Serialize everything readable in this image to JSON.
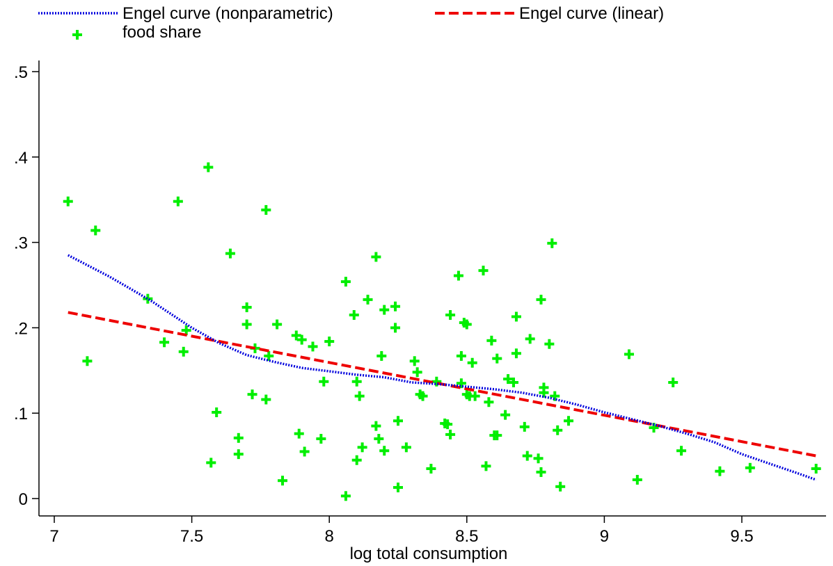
{
  "chart_data": {
    "type": "scatter",
    "xlabel": "log total consumption",
    "ylabel": "",
    "xlim": [
      6.93,
      9.8
    ],
    "ylim": [
      -0.02,
      0.52
    ],
    "x_ticks": [
      7,
      7.5,
      8,
      8.5,
      9,
      9.5
    ],
    "x_tick_labels": [
      "7",
      "7.5",
      "8",
      "8.5",
      "9",
      "9.5"
    ],
    "y_ticks": [
      0,
      0.1,
      0.2,
      0.3,
      0.4,
      0.5
    ],
    "y_tick_labels": [
      "0",
      ".1",
      ".2",
      ".3",
      ".4",
      ".5"
    ],
    "grid": false,
    "legend_position": "top",
    "series": [
      {
        "name": "Engel curve (nonparametric)",
        "kind": "line",
        "style": "dotted",
        "color": "#0000dd",
        "x": [
          7.05,
          7.2,
          7.35,
          7.5,
          7.6,
          7.7,
          7.8,
          7.9,
          8.0,
          8.1,
          8.2,
          8.3,
          8.4,
          8.5,
          8.6,
          8.7,
          8.8,
          8.9,
          9.0,
          9.1,
          9.2,
          9.3,
          9.4,
          9.5,
          9.6,
          9.7,
          9.77
        ],
        "y": [
          0.285,
          0.26,
          0.232,
          0.2,
          0.182,
          0.168,
          0.16,
          0.153,
          0.149,
          0.145,
          0.142,
          0.136,
          0.134,
          0.131,
          0.128,
          0.124,
          0.118,
          0.11,
          0.101,
          0.093,
          0.085,
          0.076,
          0.066,
          0.052,
          0.041,
          0.03,
          0.022
        ]
      },
      {
        "name": "Engel curve (linear)",
        "kind": "line",
        "style": "dashed",
        "color": "#ee0000",
        "x": [
          7.05,
          9.77
        ],
        "y": [
          0.218,
          0.05
        ]
      },
      {
        "name": "food share",
        "kind": "scatter",
        "marker": "plus",
        "color": "#00ee00",
        "x": [
          7.05,
          7.12,
          7.15,
          7.34,
          7.4,
          7.45,
          7.47,
          7.48,
          7.56,
          7.57,
          7.59,
          7.64,
          7.67,
          7.67,
          7.7,
          7.7,
          7.72,
          7.73,
          7.77,
          7.77,
          7.78,
          7.81,
          7.83,
          7.88,
          7.89,
          7.9,
          7.91,
          7.94,
          7.97,
          7.98,
          8.0,
          8.06,
          8.06,
          8.09,
          8.1,
          8.1,
          8.11,
          8.12,
          8.14,
          8.17,
          8.17,
          8.18,
          8.19,
          8.2,
          8.2,
          8.24,
          8.24,
          8.25,
          8.25,
          8.28,
          8.31,
          8.32,
          8.33,
          8.34,
          8.37,
          8.39,
          8.42,
          8.43,
          8.44,
          8.44,
          8.47,
          8.48,
          8.48,
          8.49,
          8.5,
          8.5,
          8.51,
          8.52,
          8.53,
          8.56,
          8.57,
          8.58,
          8.59,
          8.6,
          8.61,
          8.61,
          8.64,
          8.65,
          8.67,
          8.68,
          8.68,
          8.71,
          8.72,
          8.73,
          8.76,
          8.77,
          8.77,
          8.78,
          8.78,
          8.8,
          8.81,
          8.82,
          8.83,
          8.84,
          8.87,
          9.09,
          9.12,
          9.18,
          9.25,
          9.28,
          9.42,
          9.53,
          9.77
        ],
        "y": [
          0.348,
          0.161,
          0.314,
          0.234,
          0.183,
          0.348,
          0.172,
          0.197,
          0.388,
          0.042,
          0.101,
          0.287,
          0.071,
          0.052,
          0.224,
          0.204,
          0.122,
          0.176,
          0.338,
          0.116,
          0.167,
          0.204,
          0.021,
          0.191,
          0.076,
          0.186,
          0.055,
          0.178,
          0.07,
          0.137,
          0.184,
          0.003,
          0.254,
          0.215,
          0.137,
          0.045,
          0.12,
          0.06,
          0.233,
          0.283,
          0.085,
          0.07,
          0.167,
          0.221,
          0.056,
          0.225,
          0.2,
          0.091,
          0.013,
          0.06,
          0.161,
          0.148,
          0.122,
          0.12,
          0.035,
          0.137,
          0.088,
          0.087,
          0.215,
          0.075,
          0.261,
          0.135,
          0.167,
          0.206,
          0.204,
          0.122,
          0.12,
          0.159,
          0.12,
          0.267,
          0.038,
          0.113,
          0.185,
          0.074,
          0.074,
          0.164,
          0.098,
          0.14,
          0.136,
          0.213,
          0.17,
          0.084,
          0.05,
          0.187,
          0.047,
          0.233,
          0.031,
          0.13,
          0.124,
          0.181,
          0.299,
          0.12,
          0.08,
          0.014,
          0.091,
          0.169,
          0.022,
          0.083,
          0.136,
          0.056,
          0.032,
          0.036,
          0.035
        ]
      }
    ]
  }
}
